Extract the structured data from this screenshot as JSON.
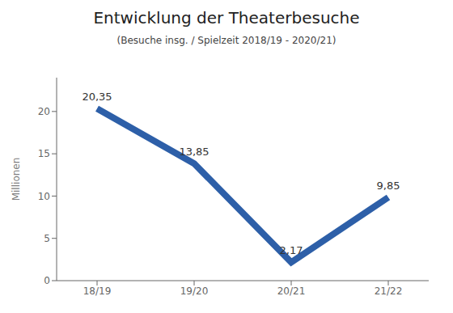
{
  "chart_data": {
    "type": "line",
    "title": "Entwicklung der Theaterbesuche",
    "subtitle": "(Besuche insg. / Spielzeit 2018/19 - 2020/21)",
    "categories": [
      "18/19",
      "19/20",
      "20/21",
      "21/22"
    ],
    "values": [
      20.35,
      13.85,
      2.17,
      9.85
    ],
    "value_labels": [
      "20,35",
      "13,85",
      "2,17",
      "9,85"
    ],
    "ylabel": "Millionen",
    "ylim": [
      0,
      24
    ],
    "yticks": [
      0,
      5,
      10,
      15,
      20
    ],
    "grid": false,
    "data_labels": true,
    "color": "#2d5fa8"
  }
}
